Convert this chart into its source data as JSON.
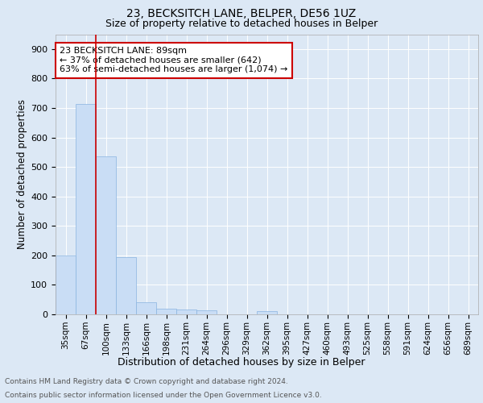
{
  "title1": "23, BECKSITCH LANE, BELPER, DE56 1UZ",
  "title2": "Size of property relative to detached houses in Belper",
  "xlabel": "Distribution of detached houses by size in Belper",
  "ylabel": "Number of detached properties",
  "footer1": "Contains HM Land Registry data © Crown copyright and database right 2024.",
  "footer2": "Contains public sector information licensed under the Open Government Licence v3.0.",
  "bar_labels": [
    "35sqm",
    "67sqm",
    "100sqm",
    "133sqm",
    "166sqm",
    "198sqm",
    "231sqm",
    "264sqm",
    "296sqm",
    "329sqm",
    "362sqm",
    "395sqm",
    "427sqm",
    "460sqm",
    "493sqm",
    "525sqm",
    "558sqm",
    "591sqm",
    "624sqm",
    "656sqm",
    "689sqm"
  ],
  "bar_values": [
    200,
    714,
    535,
    195,
    42,
    20,
    16,
    13,
    0,
    0,
    10,
    0,
    0,
    0,
    0,
    0,
    0,
    0,
    0,
    0,
    0
  ],
  "bar_color": "#c9ddf5",
  "bar_edge_color": "#8ab4e0",
  "vline_pos": 1.5,
  "vline_color": "#cc0000",
  "annotation_text": "23 BECKSITCH LANE: 89sqm\n← 37% of detached houses are smaller (642)\n63% of semi-detached houses are larger (1,074) →",
  "annotation_box_color": "#ffffff",
  "annotation_box_edge_color": "#cc0000",
  "ylim": [
    0,
    950
  ],
  "yticks": [
    0,
    100,
    200,
    300,
    400,
    500,
    600,
    700,
    800,
    900
  ],
  "fig_bg_color": "#dce8f5",
  "plot_bg_color": "#dce8f5",
  "title1_fontsize": 10,
  "title2_fontsize": 9,
  "xlabel_fontsize": 9,
  "ylabel_fontsize": 8.5,
  "tick_fontsize": 8,
  "footer_fontsize": 6.5
}
